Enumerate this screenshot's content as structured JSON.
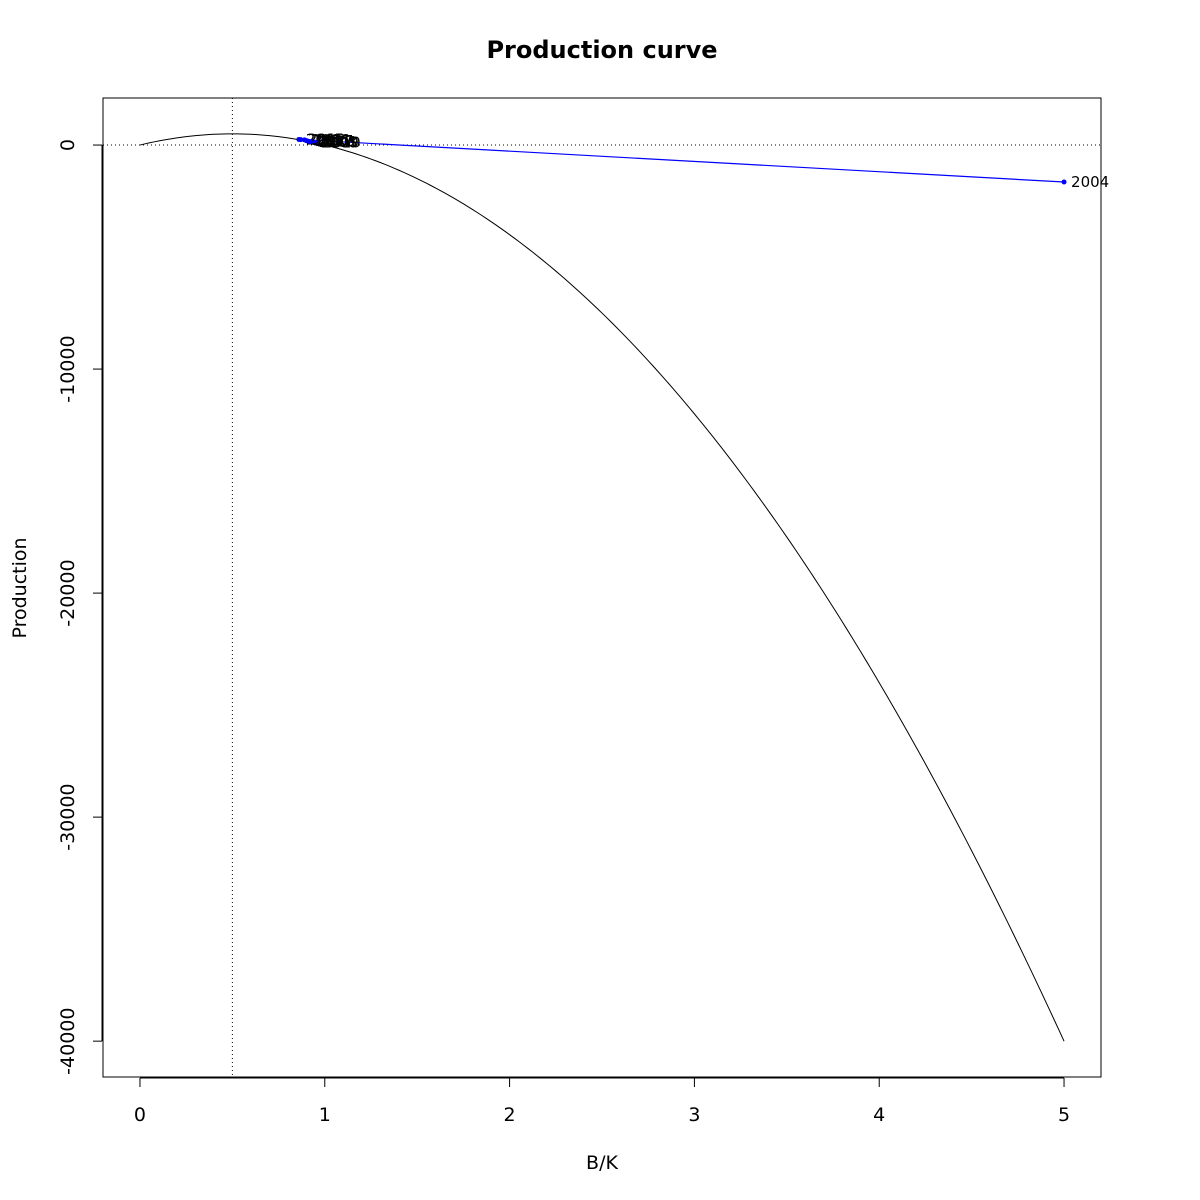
{
  "chart_data": {
    "type": "line",
    "title": "Production curve",
    "xlabel": "B/K",
    "ylabel": "Production",
    "xlim": [
      -0.2,
      5.2
    ],
    "ylim": [
      -41600,
      2100
    ],
    "x_ticks": [
      0,
      1,
      2,
      3,
      4,
      5
    ],
    "y_ticks": [
      0,
      -10000,
      -20000,
      -30000,
      -40000
    ],
    "x_tick_labels": [
      "0",
      "1",
      "2",
      "3",
      "4",
      "5"
    ],
    "y_tick_labels": [
      "0",
      "-10000",
      "-20000",
      "-30000",
      "-40000"
    ],
    "reference_lines": {
      "vertical_x": 0.5,
      "horizontal_y": 0,
      "style": "dotted"
    },
    "grid": false,
    "production_curve": {
      "color": "#000000",
      "x": [
        0,
        0.25,
        0.5,
        0.75,
        1,
        1.25,
        1.5,
        1.75,
        2,
        2.25,
        2.5,
        2.75,
        3,
        3.25,
        3.5,
        3.75,
        4,
        4.25,
        4.5,
        4.75,
        5
      ],
      "y": [
        0,
        375,
        500,
        375,
        0,
        -625,
        -1500,
        -2625,
        -4000,
        -5625,
        -7500,
        -9625,
        -12000,
        -14625,
        -17500,
        -20625,
        -24000,
        -27625,
        -31500,
        -35625,
        -40000
      ]
    },
    "trajectory": {
      "color": "#0000ff",
      "points": [
        {
          "label": "2004",
          "x": 5.0,
          "y": -1650
        },
        {
          "label": "2005",
          "x": 0.86,
          "y": 250
        },
        {
          "label": "2006",
          "x": 0.89,
          "y": 230
        },
        {
          "label": "2007",
          "x": 0.91,
          "y": 170
        },
        {
          "label": "2008",
          "x": 0.93,
          "y": 140
        },
        {
          "label": "2009",
          "x": 0.94,
          "y": 120
        },
        {
          "label": "2010",
          "x": 0.95,
          "y": 105
        },
        {
          "label": "2011",
          "x": 0.9,
          "y": 200
        },
        {
          "label": "2012",
          "x": 0.87,
          "y": 240
        },
        {
          "label": "2013",
          "x": 0.92,
          "y": 150
        }
      ]
    }
  }
}
